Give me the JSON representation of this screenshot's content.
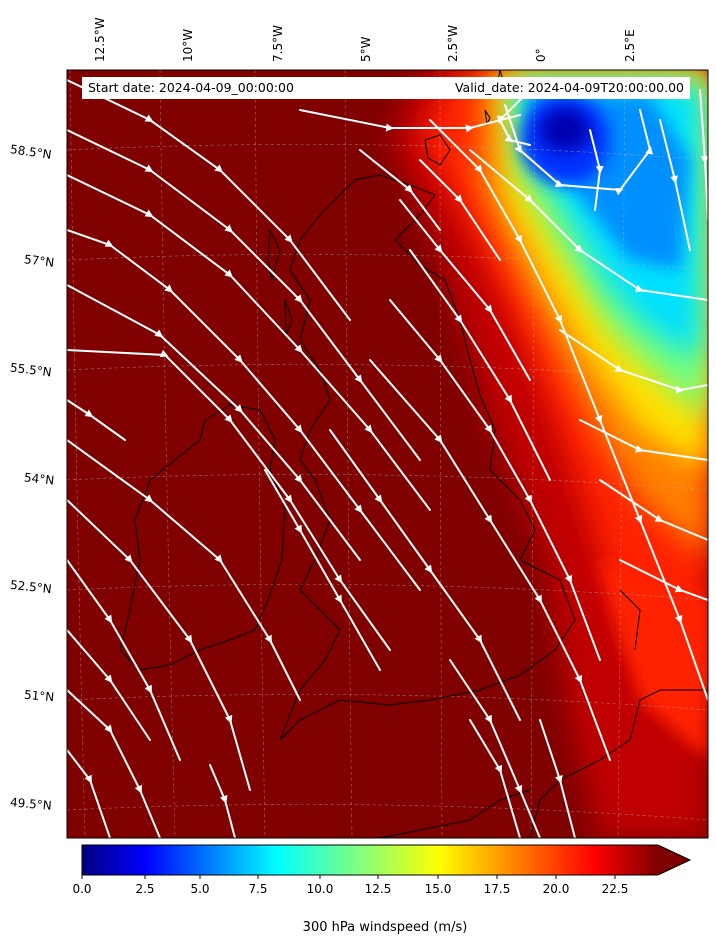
{
  "map": {
    "start_date": "Start date: 2024-04-09_00:00:00",
    "valid_date": "Valid_date: 2024-04-09T20:00:00.00",
    "lon_ticks": [
      "12.5°W",
      "10°W",
      "7.5°W",
      "5°W",
      "2.5°W",
      "0°",
      "2.5°E"
    ],
    "lat_ticks": [
      "58.5°N",
      "57°N",
      "55.5°N",
      "54°N",
      "52.5°N",
      "51°N",
      "49.5°N"
    ],
    "field": "300 hPa windspeed",
    "colormap": "jet",
    "flow_direction": "north-westerly across the domain, cyclonic circulation over the North Sea"
  },
  "colorbar": {
    "label": "300 hPa windspeed (m/s)",
    "ticks": [
      "0.0",
      "2.5",
      "5.0",
      "7.5",
      "10.0",
      "12.5",
      "15.0",
      "17.5",
      "20.0",
      "22.5"
    ],
    "range": [
      0,
      25
    ],
    "extend": "max"
  },
  "colors": {
    "saturated": "#800000",
    "streamlines": "#ffffff",
    "coast": "#000000"
  }
}
